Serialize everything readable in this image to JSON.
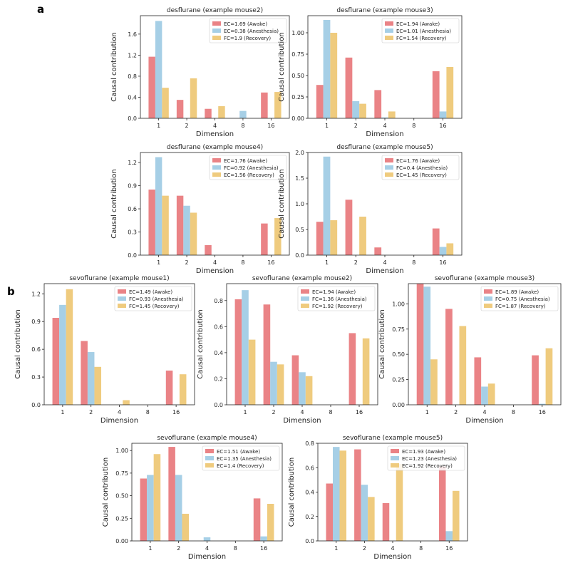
{
  "figure": {
    "panel_labels": [
      "a",
      "b"
    ]
  },
  "colors": {
    "awake": "#ea8386",
    "anesthesia": "#a6cfe6",
    "recovery": "#efcb7e"
  },
  "chart_data": [
    {
      "type": "bar",
      "panel": "a",
      "title": "desflurane (example mouse2)",
      "xlabel": "Dimension",
      "ylabel": "Causal contribution",
      "categories": [
        "1",
        "2",
        "4",
        "8",
        "16"
      ],
      "ylim": [
        0,
        1.95
      ],
      "yticks": [
        0,
        0.4,
        0.8,
        1.2,
        1.6
      ],
      "ytick_labels": [
        "0.0",
        "0.4",
        "0.8",
        "1.2",
        "1.6"
      ],
      "series": [
        {
          "name": "EC=1.69 (Awake)",
          "key": "awake",
          "values": [
            1.17,
            0.35,
            0.18,
            0,
            0.49
          ]
        },
        {
          "name": "EC=0.38 (Anesthesia)",
          "key": "anesthesia",
          "values": [
            1.85,
            0,
            0,
            0.14,
            0
          ]
        },
        {
          "name": "FC=1.9 (Recovery)",
          "key": "recovery",
          "values": [
            0.58,
            0.76,
            0.23,
            0,
            0.5
          ]
        }
      ]
    },
    {
      "type": "bar",
      "panel": "a",
      "title": "desflurane (example mouse3)",
      "xlabel": "Dimension",
      "ylabel": "Causal contribution",
      "categories": [
        "1",
        "2",
        "4",
        "8",
        "16"
      ],
      "ylim": [
        0,
        1.2
      ],
      "yticks": [
        0,
        0.25,
        0.5,
        0.75,
        1.0
      ],
      "ytick_labels": [
        "0.00",
        "0.25",
        "0.50",
        "0.75",
        "1.00"
      ],
      "series": [
        {
          "name": "EC=1.94 (Awake)",
          "key": "awake",
          "values": [
            0.39,
            0.71,
            0.33,
            0,
            0.55
          ]
        },
        {
          "name": "EC=1.01 (Anesthesia)",
          "key": "anesthesia",
          "values": [
            1.15,
            0.2,
            0.01,
            0,
            0.08
          ]
        },
        {
          "name": "FC=1.54 (Recovery)",
          "key": "recovery",
          "values": [
            1.0,
            0.17,
            0.08,
            0,
            0.6
          ]
        }
      ]
    },
    {
      "type": "bar",
      "panel": "a",
      "title": "desflurane (example mouse4)",
      "xlabel": "Dimension",
      "ylabel": "Causal contribution",
      "categories": [
        "1",
        "2",
        "4",
        "8",
        "16"
      ],
      "ylim": [
        0,
        1.33
      ],
      "yticks": [
        0,
        0.3,
        0.6,
        0.9,
        1.2
      ],
      "ytick_labels": [
        "0.0",
        "0.3",
        "0.6",
        "0.9",
        "1.2"
      ],
      "series": [
        {
          "name": "EC=1.76 (Awake)",
          "key": "awake",
          "values": [
            0.85,
            0.77,
            0.13,
            0,
            0.41
          ]
        },
        {
          "name": "FC=0.92 (Anesthesia)",
          "key": "anesthesia",
          "values": [
            1.27,
            0.64,
            0,
            0,
            0
          ]
        },
        {
          "name": "EC=1.56 (Recovery)",
          "key": "recovery",
          "values": [
            0.77,
            0.55,
            0,
            0,
            0.48
          ]
        }
      ]
    },
    {
      "type": "bar",
      "panel": "a",
      "title": "desflurane (example mouse5)",
      "xlabel": "Dimension",
      "ylabel": "Causal contribution",
      "categories": [
        "1",
        "2",
        "4",
        "8",
        "16"
      ],
      "ylim": [
        0,
        2.0
      ],
      "yticks": [
        0,
        0.5,
        1.0,
        1.5,
        2.0
      ],
      "ytick_labels": [
        "0.0",
        "0.5",
        "1.0",
        "1.5",
        "2.0"
      ],
      "series": [
        {
          "name": "EC=1.76 (Awake)",
          "key": "awake",
          "values": [
            0.65,
            1.08,
            0.15,
            0,
            0.52
          ]
        },
        {
          "name": "FC=0.4 (Anesthesia)",
          "key": "anesthesia",
          "values": [
            1.92,
            0,
            0,
            0,
            0.16
          ]
        },
        {
          "name": "EC=1.45 (Recovery)",
          "key": "recovery",
          "values": [
            0.68,
            0.75,
            0,
            0,
            0.23
          ]
        }
      ]
    },
    {
      "type": "bar",
      "panel": "b",
      "title": "sevoflurane (example mouse1)",
      "xlabel": "Dimension",
      "ylabel": "Causal contribution",
      "categories": [
        "1",
        "2",
        "4",
        "8",
        "16"
      ],
      "ylim": [
        0,
        1.31
      ],
      "yticks": [
        0,
        0.3,
        0.6,
        0.9,
        1.2
      ],
      "ytick_labels": [
        "0.0",
        "0.3",
        "0.6",
        "0.9",
        "1.2"
      ],
      "series": [
        {
          "name": "EC=1.49 (Awake)",
          "key": "awake",
          "values": [
            0.94,
            0.69,
            0,
            0,
            0.37
          ]
        },
        {
          "name": "FC=0.93 (Anesthesia)",
          "key": "anesthesia",
          "values": [
            1.08,
            0.57,
            0,
            0,
            0
          ]
        },
        {
          "name": "FC=1.45 (Recovery)",
          "key": "recovery",
          "values": [
            1.25,
            0.41,
            0.05,
            0,
            0.33
          ]
        }
      ]
    },
    {
      "type": "bar",
      "panel": "b",
      "title": "sevoflurane (example mouse2)",
      "xlabel": "Dimension",
      "ylabel": "Causal contribution",
      "categories": [
        "1",
        "2",
        "4",
        "8",
        "16"
      ],
      "ylim": [
        0,
        0.93
      ],
      "yticks": [
        0,
        0.2,
        0.4,
        0.6,
        0.8
      ],
      "ytick_labels": [
        "0.0",
        "0.2",
        "0.4",
        "0.6",
        "0.8"
      ],
      "series": [
        {
          "name": "EC=1.94 (Awake)",
          "key": "awake",
          "values": [
            0.81,
            0.77,
            0.38,
            0,
            0.55
          ]
        },
        {
          "name": "FC=1.36 (Anesthesia)",
          "key": "anesthesia",
          "values": [
            0.88,
            0.33,
            0.25,
            0,
            0
          ]
        },
        {
          "name": "FC=1.92 (Recovery)",
          "key": "recovery",
          "values": [
            0.5,
            0.31,
            0.22,
            0,
            0.51
          ]
        }
      ]
    },
    {
      "type": "bar",
      "panel": "b",
      "title": "sevoflurane (example mouse3)",
      "xlabel": "Dimension",
      "ylabel": "Causal contribution",
      "categories": [
        "1",
        "2",
        "4",
        "8",
        "16"
      ],
      "ylim": [
        0,
        1.2
      ],
      "yticks": [
        0,
        0.25,
        0.5,
        0.75,
        1.0
      ],
      "ytick_labels": [
        "0.00",
        "0.25",
        "0.50",
        "0.75",
        "1.00"
      ],
      "series": [
        {
          "name": "EC=1.89 (Awake)",
          "key": "awake",
          "values": [
            1.2,
            0.95,
            0.47,
            0,
            0.49
          ]
        },
        {
          "name": "FC=0.75 (Anesthesia)",
          "key": "anesthesia",
          "values": [
            1.17,
            0,
            0.18,
            0,
            0.01
          ]
        },
        {
          "name": "FC=1.87 (Recovery)",
          "key": "recovery",
          "values": [
            0.45,
            0.78,
            0.21,
            0,
            0.56
          ]
        }
      ]
    },
    {
      "type": "bar",
      "panel": "b",
      "title": "sevoflurane (example mouse4)",
      "xlabel": "Dimension",
      "ylabel": "Causal contribution",
      "categories": [
        "1",
        "2",
        "4",
        "8",
        "16"
      ],
      "ylim": [
        0,
        1.08
      ],
      "yticks": [
        0,
        0.25,
        0.5,
        0.75,
        1.0
      ],
      "ytick_labels": [
        "0.00",
        "0.25",
        "0.50",
        "0.75",
        "1.00"
      ],
      "series": [
        {
          "name": "EC=1.51 (Awake)",
          "key": "awake",
          "values": [
            0.69,
            1.04,
            0,
            0,
            0.47
          ]
        },
        {
          "name": "EC=1.35 (Anesthesia)",
          "key": "anesthesia",
          "values": [
            0.73,
            0.73,
            0.04,
            0,
            0.05
          ]
        },
        {
          "name": "EC=1.4 (Recovery)",
          "key": "recovery",
          "values": [
            0.96,
            0.3,
            0,
            0,
            0.41
          ]
        }
      ]
    },
    {
      "type": "bar",
      "panel": "b",
      "title": "sevoflurane (example mouse5)",
      "xlabel": "Dimension",
      "ylabel": "Causal contribution",
      "categories": [
        "1",
        "2",
        "4",
        "8",
        "16"
      ],
      "ylim": [
        0,
        0.8
      ],
      "yticks": [
        0,
        0.2,
        0.4,
        0.6,
        0.8
      ],
      "ytick_labels": [
        "0.0",
        "0.2",
        "0.4",
        "0.6",
        "0.8"
      ],
      "series": [
        {
          "name": "EC=1.93 (Awake)",
          "key": "awake",
          "values": [
            0.47,
            0.75,
            0.31,
            0,
            0.61
          ]
        },
        {
          "name": "EC=1.23 (Anesthesia)",
          "key": "anesthesia",
          "values": [
            0.77,
            0.46,
            0,
            0,
            0.08
          ]
        },
        {
          "name": "EC=1.92 (Recovery)",
          "key": "recovery",
          "values": [
            0.74,
            0.36,
            0.63,
            0,
            0.41
          ]
        }
      ]
    }
  ]
}
